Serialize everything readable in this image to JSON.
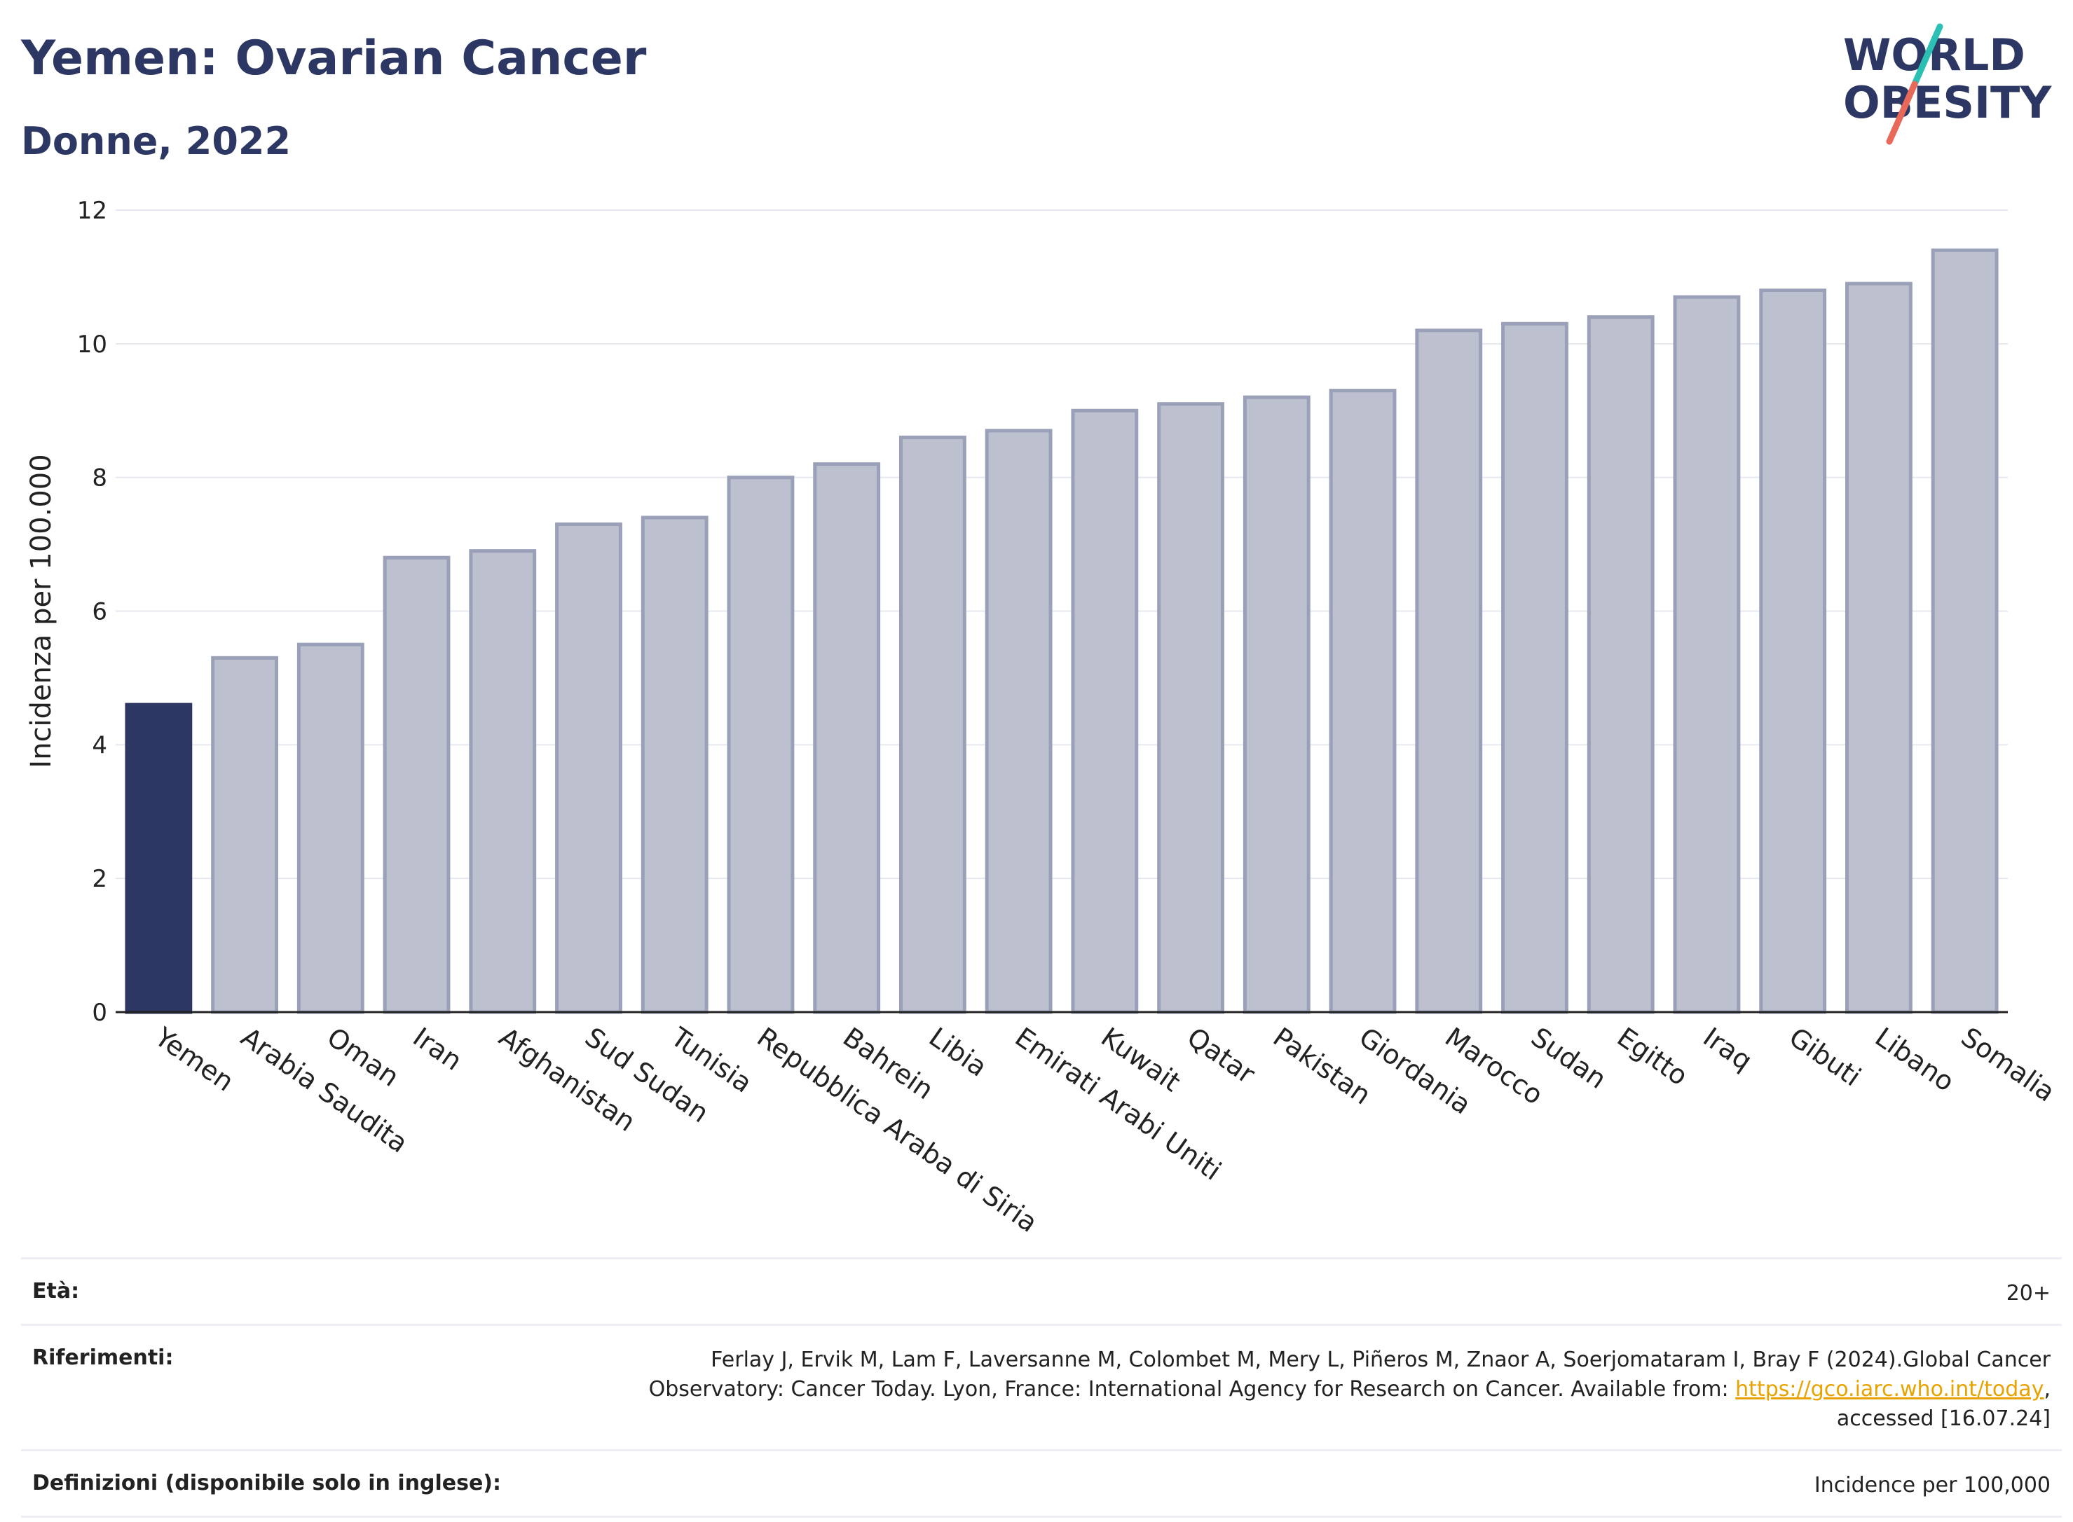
{
  "header": {
    "title": "Yemen: Ovarian Cancer",
    "subtitle": "Donne, 2022"
  },
  "logo": {
    "line1": "WORLD",
    "line2": "OBESITY",
    "colors": {
      "text": "#2d3764",
      "stroke_top": "#2cbfb4",
      "stroke_bottom": "#e8685a"
    }
  },
  "chart_data": {
    "type": "bar",
    "ylabel": "Incidenza per 100.000",
    "xlabel": "",
    "ylim": [
      0,
      12
    ],
    "yticks": [
      0,
      2,
      4,
      6,
      8,
      10,
      12
    ],
    "grid": true,
    "highlight_color": "#2d3764",
    "bar_color": "#bcc0cf",
    "bar_border_color": "#9aa0b8",
    "categories": [
      "Yemen",
      "Arabia Saudita",
      "Oman",
      "Iran",
      "Afghanistan",
      "Sud Sudan",
      "Tunisia",
      "Repubblica Araba di Siria",
      "Bahrein",
      "Libia",
      "Emirati Arabi Uniti",
      "Kuwait",
      "Qatar",
      "Pakistan",
      "Giordania",
      "Marocco",
      "Sudan",
      "Egitto",
      "Iraq",
      "Gibuti",
      "Libano",
      "Somalia"
    ],
    "values": [
      4.6,
      5.3,
      5.5,
      6.8,
      6.9,
      7.3,
      7.4,
      8.0,
      8.2,
      8.6,
      8.7,
      9.0,
      9.1,
      9.2,
      9.3,
      10.2,
      10.3,
      10.4,
      10.7,
      10.8,
      10.9,
      11.4
    ],
    "highlight_index": 0
  },
  "footer": {
    "age_label": "Età:",
    "age_value": "20+",
    "refs_label": "Riferimenti:",
    "refs_text": "Ferlay J, Ervik M, Lam F, Laversanne M, Colombet M, Mery L, Piñeros M, Znaor A, Soerjomataram I, Bray F (2024).Global Cancer Observatory: Cancer Today. Lyon, France: International Agency for Research on Cancer. Available from:",
    "refs_link": "https://gco.iarc.who.int/today",
    "refs_suffix": ", accessed [16.07.24]",
    "defs_label": "Definizioni (disponibile solo in inglese):",
    "defs_value": "Incidence per 100,000"
  }
}
